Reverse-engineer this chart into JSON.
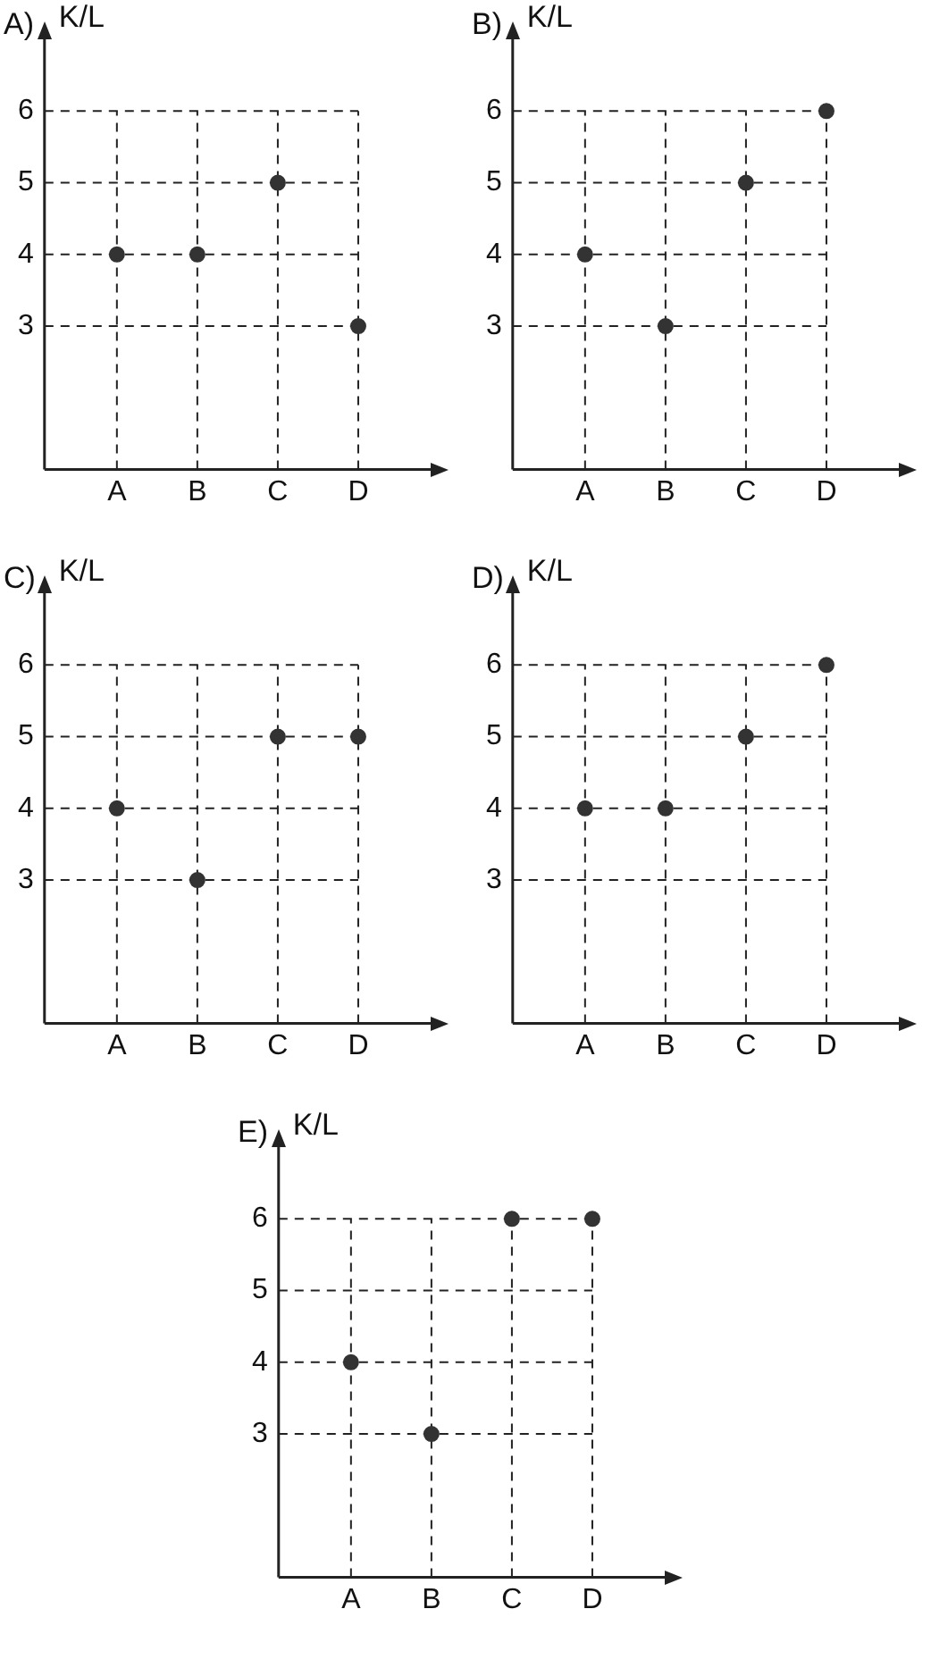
{
  "chart_data": [
    {
      "type": "scatter",
      "title": "A)",
      "ylabel": "K/L",
      "categories": [
        "A",
        "B",
        "C",
        "D"
      ],
      "values": [
        4,
        4,
        5,
        3
      ],
      "color": "#333333",
      "ylim": [
        1,
        7
      ],
      "yticks": [
        3,
        4,
        5,
        6
      ],
      "grid": true,
      "marker": "circle"
    },
    {
      "type": "scatter",
      "title": "B)",
      "ylabel": "K/L",
      "categories": [
        "A",
        "B",
        "C",
        "D"
      ],
      "values": [
        4,
        3,
        5,
        6
      ],
      "color": "#333333",
      "ylim": [
        1,
        7
      ],
      "yticks": [
        3,
        4,
        5,
        6
      ],
      "grid": true,
      "marker": "circle"
    },
    {
      "type": "scatter",
      "title": "C)",
      "ylabel": "K/L",
      "categories": [
        "A",
        "B",
        "C",
        "D"
      ],
      "values": [
        4,
        3,
        5,
        5
      ],
      "color": "#333333",
      "ylim": [
        1,
        7
      ],
      "yticks": [
        3,
        4,
        5,
        6
      ],
      "grid": true,
      "marker": "circle"
    },
    {
      "type": "scatter",
      "title": "D)",
      "ylabel": "K/L",
      "categories": [
        "A",
        "B",
        "C",
        "D"
      ],
      "values": [
        4,
        4,
        5,
        6
      ],
      "color": "#333333",
      "ylim": [
        1,
        7
      ],
      "yticks": [
        3,
        4,
        5,
        6
      ],
      "grid": true,
      "marker": "circle"
    },
    {
      "type": "scatter",
      "title": "E)",
      "ylabel": "K/L",
      "categories": [
        "A",
        "B",
        "C",
        "D"
      ],
      "values": [
        4,
        3,
        6,
        6
      ],
      "color": "#333333",
      "ylim": [
        1,
        7
      ],
      "yticks": [
        3,
        4,
        5,
        6
      ],
      "grid": true,
      "marker": "circle"
    }
  ]
}
